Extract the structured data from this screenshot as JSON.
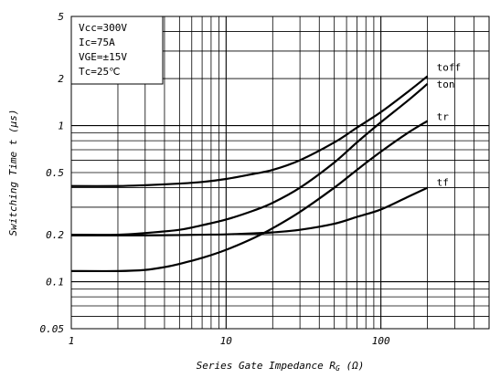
{
  "chart_data": {
    "type": "line",
    "title": "",
    "xlabel": "Series Gate Impedance R G (Ω)",
    "xlabel_parts": {
      "main": "Series Gate Impedance R",
      "sub": "G",
      "tail": " (Ω)"
    },
    "ylabel": "Switching Time t (μs)",
    "x_scale": "log",
    "y_scale": "log",
    "xlim": [
      1,
      500
    ],
    "ylim": [
      0.05,
      5
    ],
    "grid": true,
    "x_ticks": [
      {
        "value": 1,
        "label": "1"
      },
      {
        "value": 10,
        "label": "10"
      },
      {
        "value": 100,
        "label": "100"
      }
    ],
    "y_ticks": [
      {
        "value": 0.05,
        "label": "0.05"
      },
      {
        "value": 0.1,
        "label": "0.1"
      },
      {
        "value": 0.2,
        "label": "0.2"
      },
      {
        "value": 0.5,
        "label": "0.5"
      },
      {
        "value": 1,
        "label": "1"
      },
      {
        "value": 2,
        "label": "2"
      },
      {
        "value": 5,
        "label": "5"
      }
    ],
    "conditions": [
      "Vcc=300V",
      "Ic=75A",
      "VGE=±15V",
      "Tc=25℃"
    ],
    "legend_position": "top-left",
    "series": [
      {
        "name": "toff",
        "x": [
          1,
          2,
          3,
          5,
          7,
          10,
          15,
          20,
          30,
          50,
          70,
          100,
          150,
          200
        ],
        "y": [
          0.41,
          0.41,
          0.415,
          0.425,
          0.435,
          0.455,
          0.49,
          0.52,
          0.6,
          0.78,
          0.97,
          1.22,
          1.65,
          2.07
        ]
      },
      {
        "name": "ton",
        "x": [
          1,
          2,
          3,
          5,
          7,
          10,
          15,
          20,
          30,
          50,
          70,
          100,
          150,
          200
        ],
        "y": [
          0.2,
          0.2,
          0.205,
          0.215,
          0.23,
          0.25,
          0.285,
          0.32,
          0.4,
          0.58,
          0.78,
          1.05,
          1.45,
          1.85
        ]
      },
      {
        "name": "tr",
        "x": [
          1,
          2,
          3,
          4,
          5,
          7,
          10,
          15,
          20,
          30,
          50,
          70,
          100,
          150,
          200
        ],
        "y": [
          0.117,
          0.117,
          0.119,
          0.124,
          0.13,
          0.142,
          0.16,
          0.19,
          0.22,
          0.28,
          0.4,
          0.52,
          0.68,
          0.9,
          1.07
        ]
      },
      {
        "name": "tf",
        "x": [
          1,
          2,
          3,
          5,
          7,
          10,
          15,
          20,
          30,
          50,
          70,
          100,
          150,
          200
        ],
        "y": [
          0.198,
          0.198,
          0.198,
          0.199,
          0.2,
          0.201,
          0.204,
          0.207,
          0.215,
          0.235,
          0.26,
          0.29,
          0.35,
          0.4
        ]
      }
    ]
  }
}
